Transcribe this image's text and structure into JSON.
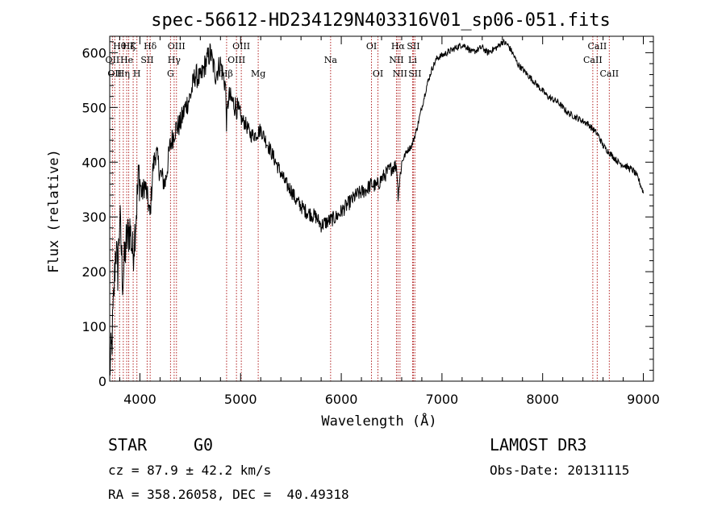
{
  "chart_data": {
    "type": "line",
    "title": "spec-56612-HD234129N403316V01_sp06-051.fits",
    "xlabel": "Wavelength (Å)",
    "ylabel": "Flux (relative)",
    "xlim": [
      3700,
      9100
    ],
    "ylim": [
      0,
      630
    ],
    "xticks": [
      4000,
      5000,
      6000,
      7000,
      8000,
      9000
    ],
    "yticks": [
      0,
      100,
      200,
      300,
      400,
      500,
      600
    ],
    "series": [
      {
        "name": "flux",
        "x": [
          3700,
          3720,
          3740,
          3760,
          3780,
          3800,
          3830,
          3860,
          3900,
          3930,
          3960,
          3990,
          4020,
          4050,
          4080,
          4100,
          4130,
          4160,
          4200,
          4250,
          4300,
          4350,
          4400,
          4450,
          4500,
          4550,
          4600,
          4650,
          4700,
          4750,
          4800,
          4850,
          4861,
          4880,
          4920,
          4960,
          5000,
          5050,
          5100,
          5150,
          5200,
          5250,
          5300,
          5350,
          5400,
          5450,
          5500,
          5550,
          5600,
          5650,
          5700,
          5750,
          5800,
          5850,
          5900,
          5950,
          6000,
          6050,
          6100,
          6150,
          6200,
          6250,
          6300,
          6350,
          6400,
          6450,
          6500,
          6550,
          6563,
          6600,
          6650,
          6700,
          6750,
          6800,
          6850,
          6900,
          6950,
          7000,
          7050,
          7100,
          7150,
          7200,
          7250,
          7300,
          7350,
          7400,
          7450,
          7500,
          7550,
          7600,
          7650,
          7700,
          7750,
          7800,
          7850,
          7900,
          7950,
          8000,
          8050,
          8100,
          8150,
          8200,
          8250,
          8300,
          8350,
          8400,
          8450,
          8500,
          8550,
          8600,
          8650,
          8700,
          8750,
          8800,
          8850,
          8900,
          8950,
          8980,
          9000
        ],
        "values": [
          20,
          60,
          150,
          250,
          200,
          300,
          180,
          250,
          280,
          230,
          300,
          380,
          340,
          360,
          330,
          300,
          390,
          420,
          380,
          360,
          430,
          460,
          470,
          500,
          520,
          560,
          550,
          580,
          600,
          560,
          580,
          540,
          470,
          520,
          510,
          500,
          480,
          470,
          450,
          450,
          460,
          440,
          420,
          400,
          380,
          360,
          350,
          330,
          320,
          310,
          305,
          300,
          285,
          290,
          295,
          300,
          310,
          320,
          330,
          340,
          345,
          350,
          360,
          355,
          370,
          380,
          390,
          395,
          340,
          400,
          420,
          430,
          460,
          500,
          540,
          570,
          590,
          595,
          600,
          605,
          610,
          615,
          610,
          600,
          605,
          610,
          600,
          605,
          610,
          620,
          615,
          600,
          580,
          570,
          560,
          550,
          540,
          530,
          520,
          515,
          510,
          500,
          490,
          485,
          480,
          475,
          470,
          460,
          450,
          430,
          420,
          410,
          400,
          395,
          390,
          385,
          370,
          355,
          345
        ]
      }
    ],
    "line_markers": [
      {
        "wl": 3727,
        "label": "OII",
        "row": 1
      },
      {
        "wl": 3750,
        "label": "OII",
        "row": 2
      },
      {
        "wl": 3798,
        "label": "Hθ",
        "row": 0
      },
      {
        "wl": 3835,
        "label": "Hη",
        "row": 2
      },
      {
        "wl": 3869,
        "label": "He",
        "row": 1
      },
      {
        "wl": 3889,
        "label": "Hζ",
        "row": 0
      },
      {
        "wl": 3933,
        "label": "K",
        "row": 0
      },
      {
        "wl": 3970,
        "label": "H",
        "row": 2
      },
      {
        "wl": 4072,
        "label": "SII",
        "row": 1
      },
      {
        "wl": 4102,
        "label": "Hδ",
        "row": 0
      },
      {
        "wl": 4304,
        "label": "G",
        "row": 2
      },
      {
        "wl": 4340,
        "label": "Hγ",
        "row": 1
      },
      {
        "wl": 4363,
        "label": "OIII",
        "row": 0
      },
      {
        "wl": 4861,
        "label": "Hβ",
        "row": 2
      },
      {
        "wl": 4959,
        "label": "OIII",
        "row": 1
      },
      {
        "wl": 5007,
        "label": "OIII",
        "row": 0
      },
      {
        "wl": 5175,
        "label": "Mg",
        "row": 2
      },
      {
        "wl": 5894,
        "label": "Na",
        "row": 1
      },
      {
        "wl": 6300,
        "label": "OI",
        "row": 0
      },
      {
        "wl": 6364,
        "label": "OI",
        "row": 2
      },
      {
        "wl": 6548,
        "label": "NII",
        "row": 1
      },
      {
        "wl": 6563,
        "label": "Hα",
        "row": 0
      },
      {
        "wl": 6583,
        "label": "NII",
        "row": 2
      },
      {
        "wl": 6708,
        "label": "Li",
        "row": 1
      },
      {
        "wl": 6716,
        "label": "SII",
        "row": 0
      },
      {
        "wl": 6731,
        "label": "SII",
        "row": 2
      },
      {
        "wl": 8498,
        "label": "CaII",
        "row": 1
      },
      {
        "wl": 8542,
        "label": "CaII",
        "row": 0
      },
      {
        "wl": 8662,
        "label": "CaII",
        "row": 2
      }
    ]
  },
  "info": {
    "object_type": "STAR",
    "subclass": "G0",
    "survey": "LAMOST DR3",
    "cz": "cz = 87.9 ± 42.2 km/s",
    "obs_date": "Obs-Date: 20131115",
    "coords": "RA = 358.26058, DEC =  40.49318"
  },
  "colors": {
    "spectrum": "#000000",
    "marker": "#b22222",
    "axis": "#000000"
  }
}
